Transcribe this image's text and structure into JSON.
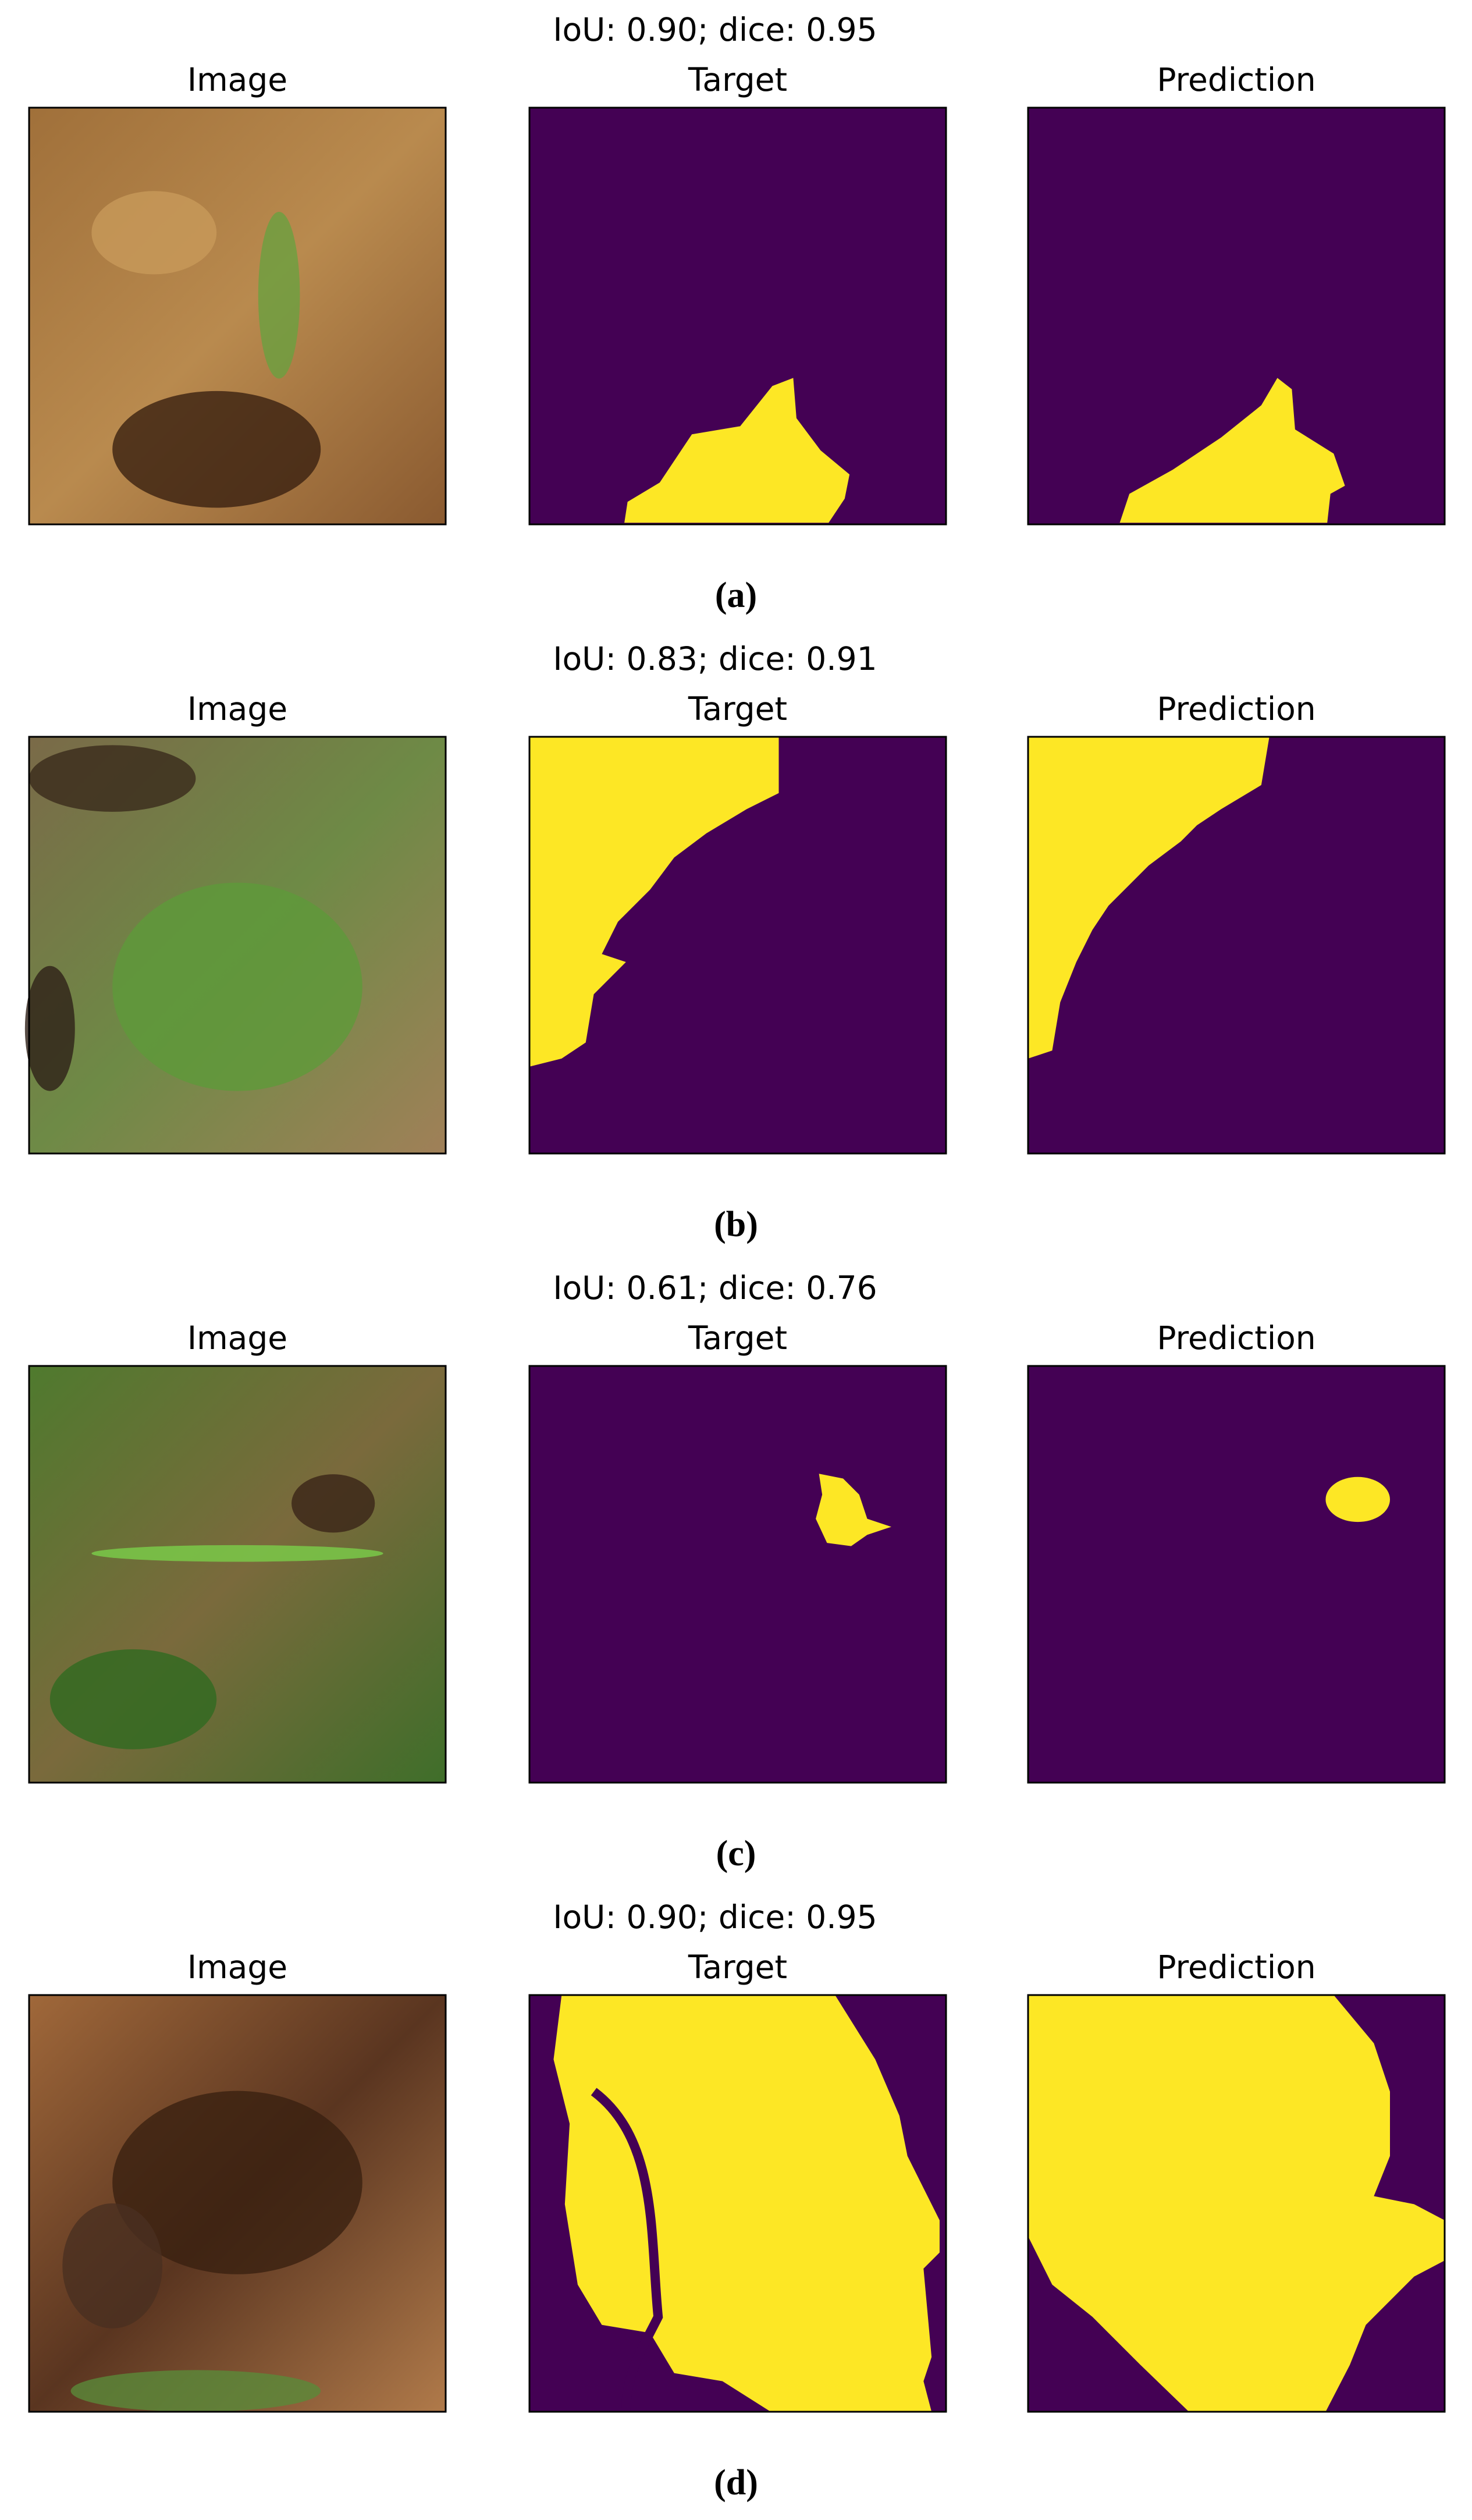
{
  "panels": [
    {
      "title": "IoU: 0.90; dice: 0.95",
      "subtitles": [
        "Image",
        "Target",
        "Prediction"
      ],
      "caption": "(a)"
    },
    {
      "title": "IoU: 0.83; dice: 0.91",
      "subtitles": [
        "Image",
        "Target",
        "Prediction"
      ],
      "caption": "(b)"
    },
    {
      "title": "IoU: 0.61; dice: 0.76",
      "subtitles": [
        "Image",
        "Target",
        "Prediction"
      ],
      "caption": "(c)"
    },
    {
      "title": "IoU: 0.90; dice: 0.95",
      "subtitles": [
        "Image",
        "Target",
        "Prediction"
      ],
      "caption": "(d)"
    }
  ]
}
